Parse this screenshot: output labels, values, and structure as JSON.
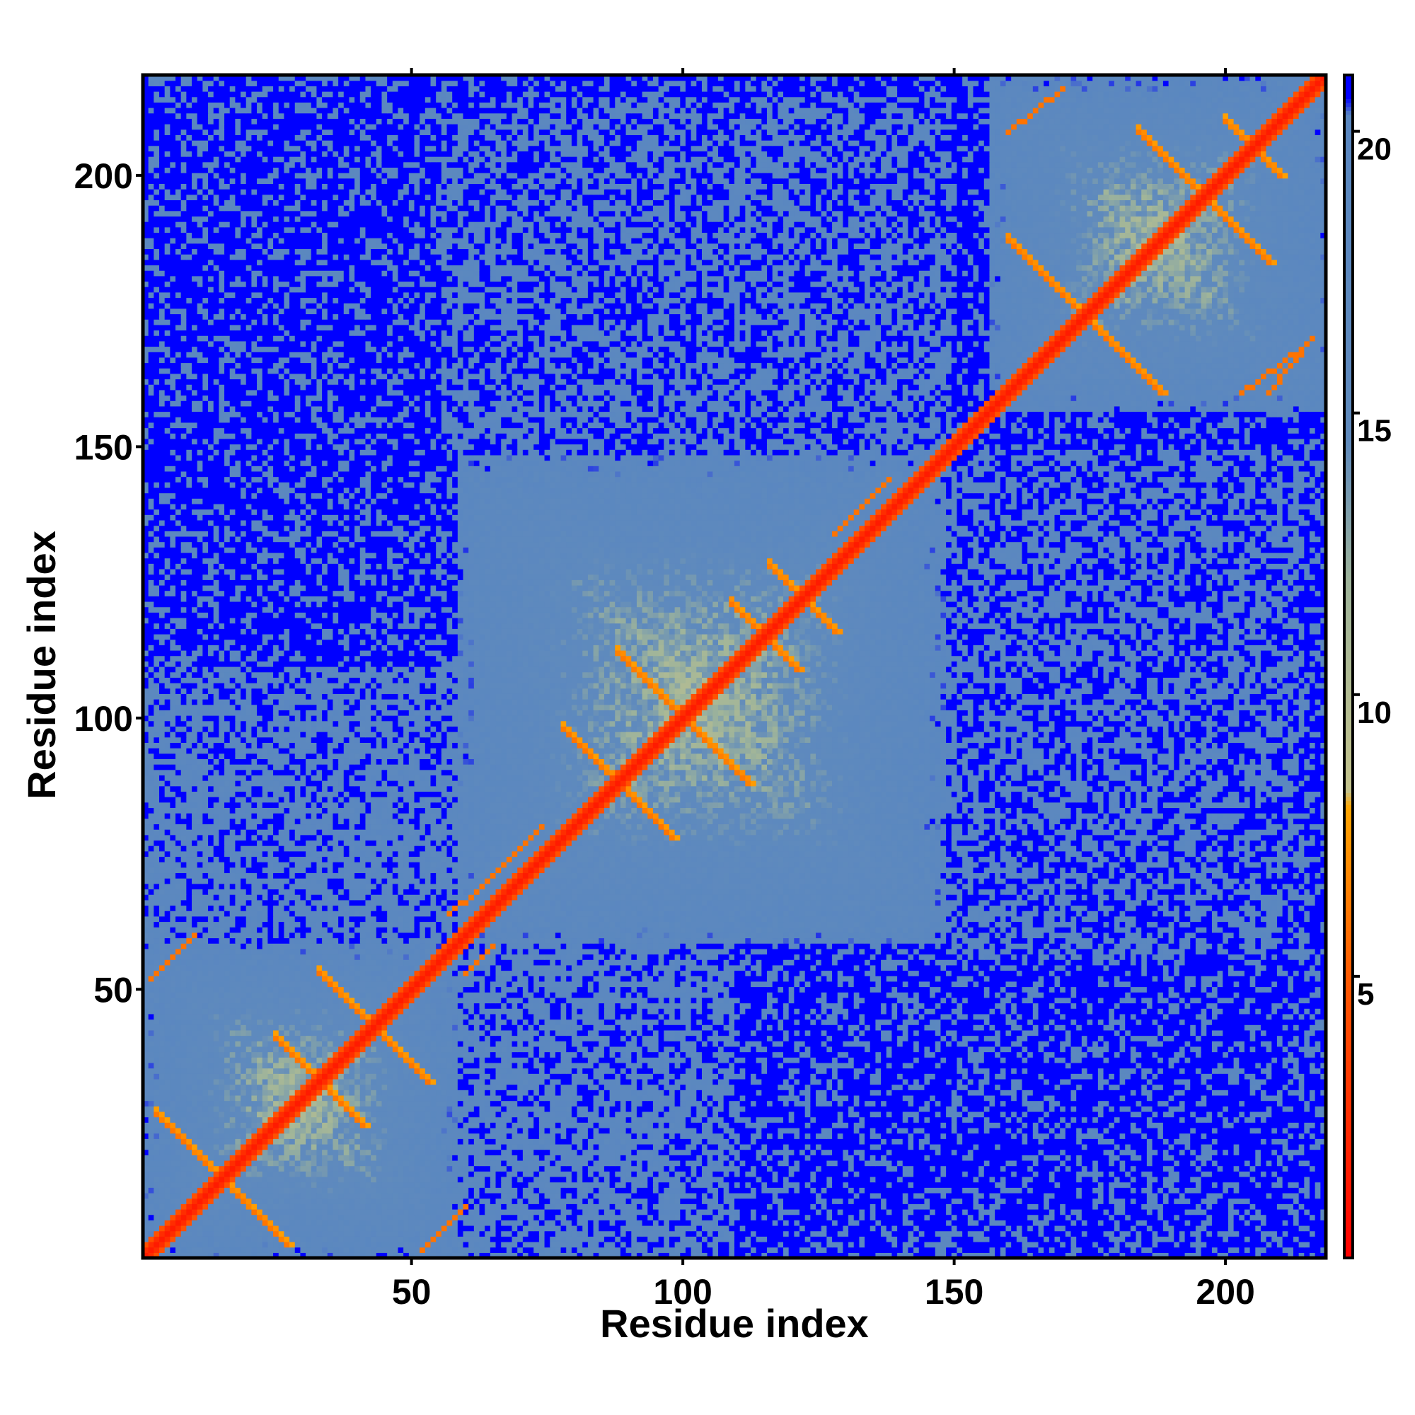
{
  "chart_data": {
    "type": "heatmap",
    "title": "",
    "xlabel": "Residue index",
    "ylabel": "Residue index",
    "xlim": [
      1,
      218
    ],
    "ylim": [
      1,
      218
    ],
    "n_residues": 218,
    "x_ticks": [
      50,
      100,
      150,
      200
    ],
    "y_ticks": [
      50,
      100,
      150,
      200
    ],
    "x_tick_labels": [
      "50",
      "100",
      "150",
      "200"
    ],
    "y_tick_labels": [
      "50",
      "100",
      "150",
      "200"
    ],
    "colorbar": {
      "range": [
        0,
        21
      ],
      "ticks": [
        5,
        10,
        15,
        20
      ],
      "tick_labels": [
        "5",
        "10",
        "15",
        "20"
      ],
      "stops": [
        {
          "value": 0,
          "color": "#ff0000"
        },
        {
          "value": 5,
          "color": "#ff5a00"
        },
        {
          "value": 8,
          "color": "#ffa500"
        },
        {
          "value": 8.3,
          "color": "#c4c38c"
        },
        {
          "value": 12,
          "color": "#9fb49a"
        },
        {
          "value": 14.5,
          "color": "#5f8abd"
        },
        {
          "value": 20.3,
          "color": "#5a87c0"
        },
        {
          "value": 20.6,
          "color": "#0000ff"
        },
        {
          "value": 21,
          "color": "#0000ff"
        }
      ]
    },
    "domains": [
      {
        "start": 1,
        "end": 58
      },
      {
        "start": 58,
        "end": 148
      },
      {
        "start": 157,
        "end": 218
      }
    ],
    "structure_contacts": [
      {
        "type": "diagonal",
        "start": 1,
        "end": 218,
        "value": 1.5
      },
      {
        "type": "anti",
        "center": [
          15,
          15
        ],
        "half_length": 12,
        "value": 6
      },
      {
        "type": "anti",
        "center": [
          33,
          33
        ],
        "half_length": 8,
        "value": 6
      },
      {
        "type": "anti",
        "center": [
          43,
          43
        ],
        "half_length": 10,
        "value": 6
      },
      {
        "type": "anti",
        "center": [
          88,
          88
        ],
        "half_length": 10,
        "value": 6
      },
      {
        "type": "anti",
        "center": [
          100,
          100
        ],
        "half_length": 12,
        "value": 6
      },
      {
        "type": "anti",
        "center": [
          115,
          115
        ],
        "half_length": 6,
        "value": 6
      },
      {
        "type": "anti",
        "center": [
          122,
          122
        ],
        "half_length": 6,
        "value": 6
      },
      {
        "type": "anti",
        "center": [
          174,
          174
        ],
        "half_length": 14,
        "value": 6
      },
      {
        "type": "anti",
        "center": [
          196,
          196
        ],
        "half_length": 12,
        "value": 6
      },
      {
        "type": "anti",
        "center": [
          205,
          205
        ],
        "half_length": 5,
        "value": 6
      },
      {
        "type": "parallel",
        "start": [
          60,
          66
        ],
        "end": [
          74,
          80
        ],
        "value": 6
      },
      {
        "type": "parallel",
        "start": [
          128,
          134
        ],
        "end": [
          138,
          144
        ],
        "value": 6
      },
      {
        "type": "parallel",
        "start": [
          2,
          52
        ],
        "end": [
          10,
          60
        ],
        "value": 6
      },
      {
        "type": "parallel",
        "start": [
          52,
          2
        ],
        "end": [
          60,
          10
        ],
        "value": 6
      },
      {
        "type": "parallel",
        "start": [
          160,
          208
        ],
        "end": [
          170,
          216
        ],
        "value": 6
      },
      {
        "type": "parallel",
        "start": [
          208,
          160
        ],
        "end": [
          216,
          170
        ],
        "value": 6
      },
      {
        "type": "parallel",
        "start": [
          203,
          160
        ],
        "end": [
          214,
          168
        ],
        "value": 6
      },
      {
        "type": "parallel",
        "start": [
          57,
          64
        ],
        "end": [
          62,
          68
        ],
        "value": 6
      },
      {
        "type": "parallel",
        "start": [
          60,
          53
        ],
        "end": [
          65,
          58
        ],
        "value": 6
      }
    ],
    "background_value": 21,
    "grid": false,
    "legend": "colorbar-right"
  }
}
